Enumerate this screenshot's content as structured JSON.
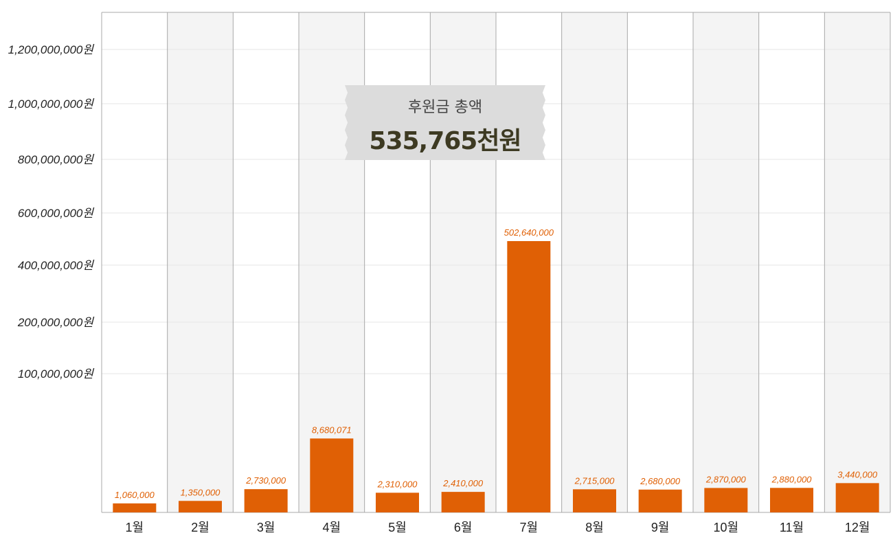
{
  "summary": {
    "label": "후원금 총액",
    "value": "535,765천원"
  },
  "chart_data": {
    "type": "bar",
    "categories": [
      "1월",
      "2월",
      "3월",
      "4월",
      "5월",
      "6월",
      "7월",
      "8월",
      "9월",
      "10월",
      "11월",
      "12월"
    ],
    "values": [
      1060000,
      1350000,
      2730000,
      8680071,
      2310000,
      2410000,
      502640000,
      2715000,
      2680000,
      2870000,
      2880000,
      3440000
    ],
    "value_labels": [
      "1,060,000",
      "1,350,000",
      "2,730,000",
      "8,680,071",
      "2,310,000",
      "2,410,000",
      "502,640,000",
      "2,715,000",
      "2,680,000",
      "2,870,000",
      "2,880,000",
      "3,440,000"
    ],
    "y_ticks": [
      {
        "value": 100000000,
        "label": "100,000,000원"
      },
      {
        "value": 200000000,
        "label": "200,000,000원"
      },
      {
        "value": 400000000,
        "label": "400,000,000원"
      },
      {
        "value": 600000000,
        "label": "600,000,000원"
      },
      {
        "value": 800000000,
        "label": "800,000,000원"
      },
      {
        "value": 1000000000,
        "label": "1,000,000,000원"
      },
      {
        "value": 1200000000,
        "label": "1,200,000,000원"
      }
    ],
    "ylim": [
      0,
      1200000000
    ],
    "scale": "non-linear",
    "grid": true,
    "legend": "none",
    "colors": {
      "bar": "#e06005",
      "value_label": "#e06005",
      "band_alt": "#f4f4f4",
      "band": "#ffffff",
      "axis_line": "#a8a8a8",
      "grid": "#e6e6e6"
    }
  }
}
